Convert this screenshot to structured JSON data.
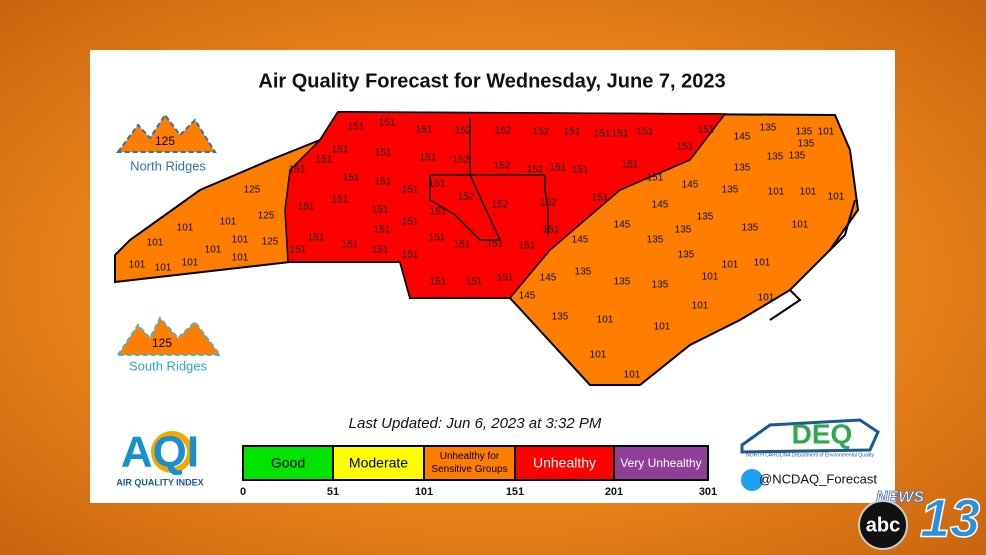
{
  "header": {
    "title": "Air Quality Forecast for Wednesday, June 7, 2023"
  },
  "ridges": [
    {
      "value": 125,
      "label": "North Ridges"
    },
    {
      "value": 125,
      "label": "South Ridges"
    }
  ],
  "map": {
    "labels": [
      151,
      151,
      151,
      152,
      152,
      152,
      151,
      151,
      151,
      151,
      151,
      151,
      151,
      151,
      152,
      152,
      152,
      151,
      151,
      151,
      151,
      151,
      151,
      151,
      151,
      151,
      151,
      152,
      152,
      152,
      151,
      151,
      151,
      151,
      151,
      151,
      151,
      151,
      151,
      151,
      151,
      151,
      151,
      151,
      151,
      151,
      151,
      151,
      151,
      151,
      151,
      145,
      135,
      135,
      101,
      135,
      135,
      135,
      135,
      145,
      135,
      145,
      135,
      145,
      145,
      135,
      135,
      145,
      135,
      145,
      135,
      135,
      135,
      101,
      101,
      101,
      135,
      101,
      101,
      101,
      101,
      101,
      101,
      135,
      101,
      101,
      101,
      101,
      125,
      125,
      125,
      101,
      101,
      101,
      101,
      101,
      101,
      101,
      101,
      101
    ]
  },
  "updated": "Last Updated: Jun 6, 2023 at 3:32 PM",
  "legend": {
    "categories": [
      {
        "name": "Good",
        "color": "#00e400"
      },
      {
        "name": "Moderate",
        "color": "#ffff00"
      },
      {
        "name": "Unhealthy for Sensitive Groups",
        "color": "#ff7e00"
      },
      {
        "name": "Unhealthy",
        "color": "#ff0000"
      },
      {
        "name": "Very Unhealthy",
        "color": "#8f3f97"
      }
    ],
    "breaks": [
      0,
      51,
      101,
      151,
      201,
      301
    ]
  },
  "logos": {
    "aqi": "AQI",
    "aqi_caption": "AIR QUALITY INDEX",
    "deq": "DEQ",
    "deq_caption": "NORTH CAROLINA Department of Environmental Quality",
    "twitter": "@NCDAQ_Forecast",
    "news": "NEWS",
    "network": "abc",
    "channel": "13"
  }
}
